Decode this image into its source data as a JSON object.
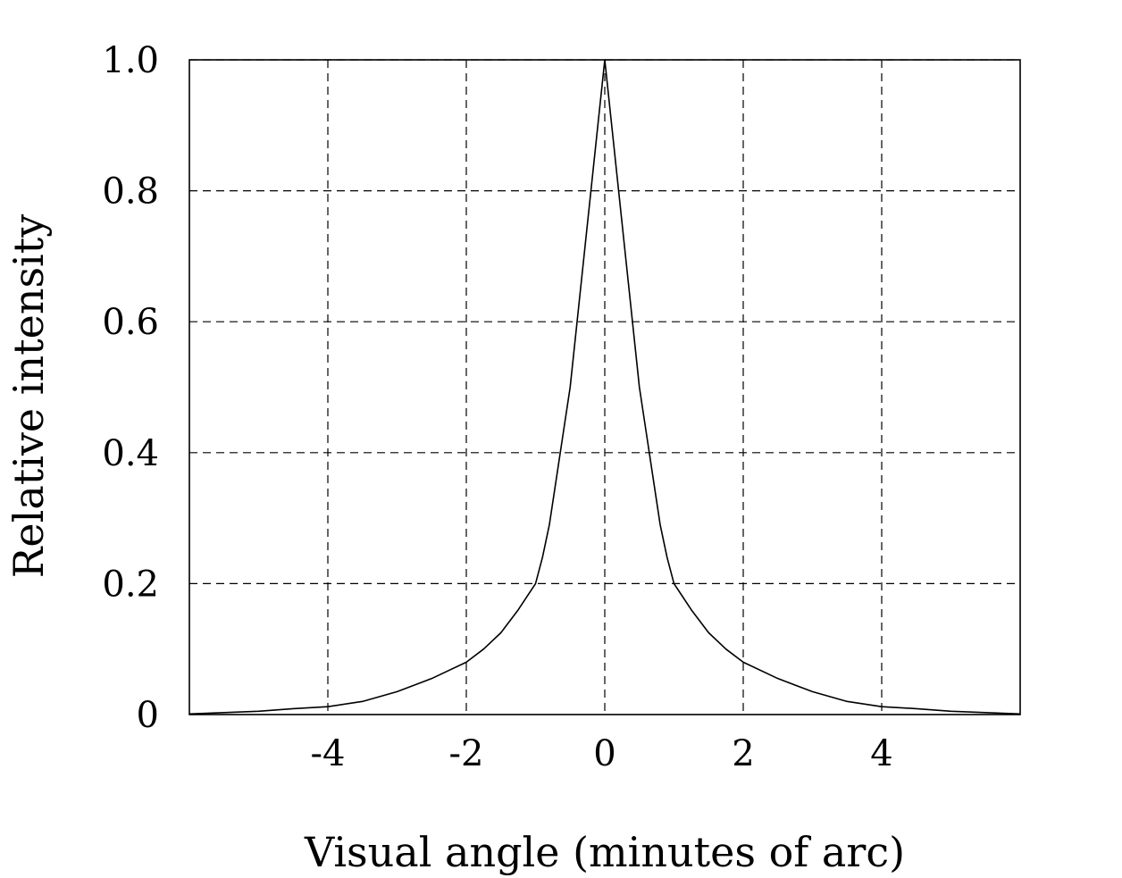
{
  "chart_data": {
    "type": "line",
    "title": "",
    "xlabel": "Visual angle (minutes of arc)",
    "ylabel": "Relative intensity",
    "xlim": [
      -6,
      6
    ],
    "ylim": [
      0,
      1.0
    ],
    "x_ticks": [
      -4,
      -2,
      0,
      2,
      4
    ],
    "x_tick_labels": [
      "-4",
      "-2",
      "0",
      "2",
      "4"
    ],
    "y_ticks": [
      0,
      0.2,
      0.4,
      0.6,
      0.8,
      1.0
    ],
    "y_tick_labels": [
      "0",
      "0.2",
      "0.4",
      "0.6",
      "0.8",
      "1.0"
    ],
    "grid": true,
    "legend": "none",
    "line_color": "#000000",
    "grid_color": "#000000",
    "series": [
      {
        "x": [
          -6.0,
          -5.5,
          -5.0,
          -4.5,
          -4.0,
          -3.5,
          -3.0,
          -2.5,
          -2.0,
          -1.75,
          -1.5,
          -1.25,
          -1.0,
          -0.9,
          -0.8,
          -0.7,
          -0.6,
          -0.5,
          -0.4,
          -0.3,
          -0.2,
          -0.1,
          0.0,
          0.1,
          0.2,
          0.3,
          0.4,
          0.5,
          0.6,
          0.7,
          0.8,
          0.9,
          1.0,
          1.25,
          1.5,
          1.75,
          2.0,
          2.5,
          3.0,
          3.5,
          4.0,
          4.5,
          5.0,
          5.5,
          6.0
        ],
        "y": [
          0.001,
          0.003,
          0.005,
          0.009,
          0.012,
          0.02,
          0.035,
          0.055,
          0.08,
          0.1,
          0.125,
          0.16,
          0.2,
          0.24,
          0.29,
          0.36,
          0.43,
          0.5,
          0.6,
          0.7,
          0.8,
          0.9,
          1.0,
          0.9,
          0.8,
          0.7,
          0.6,
          0.5,
          0.43,
          0.36,
          0.29,
          0.24,
          0.2,
          0.16,
          0.125,
          0.1,
          0.08,
          0.055,
          0.035,
          0.02,
          0.012,
          0.009,
          0.005,
          0.003,
          0.001
        ]
      }
    ]
  }
}
